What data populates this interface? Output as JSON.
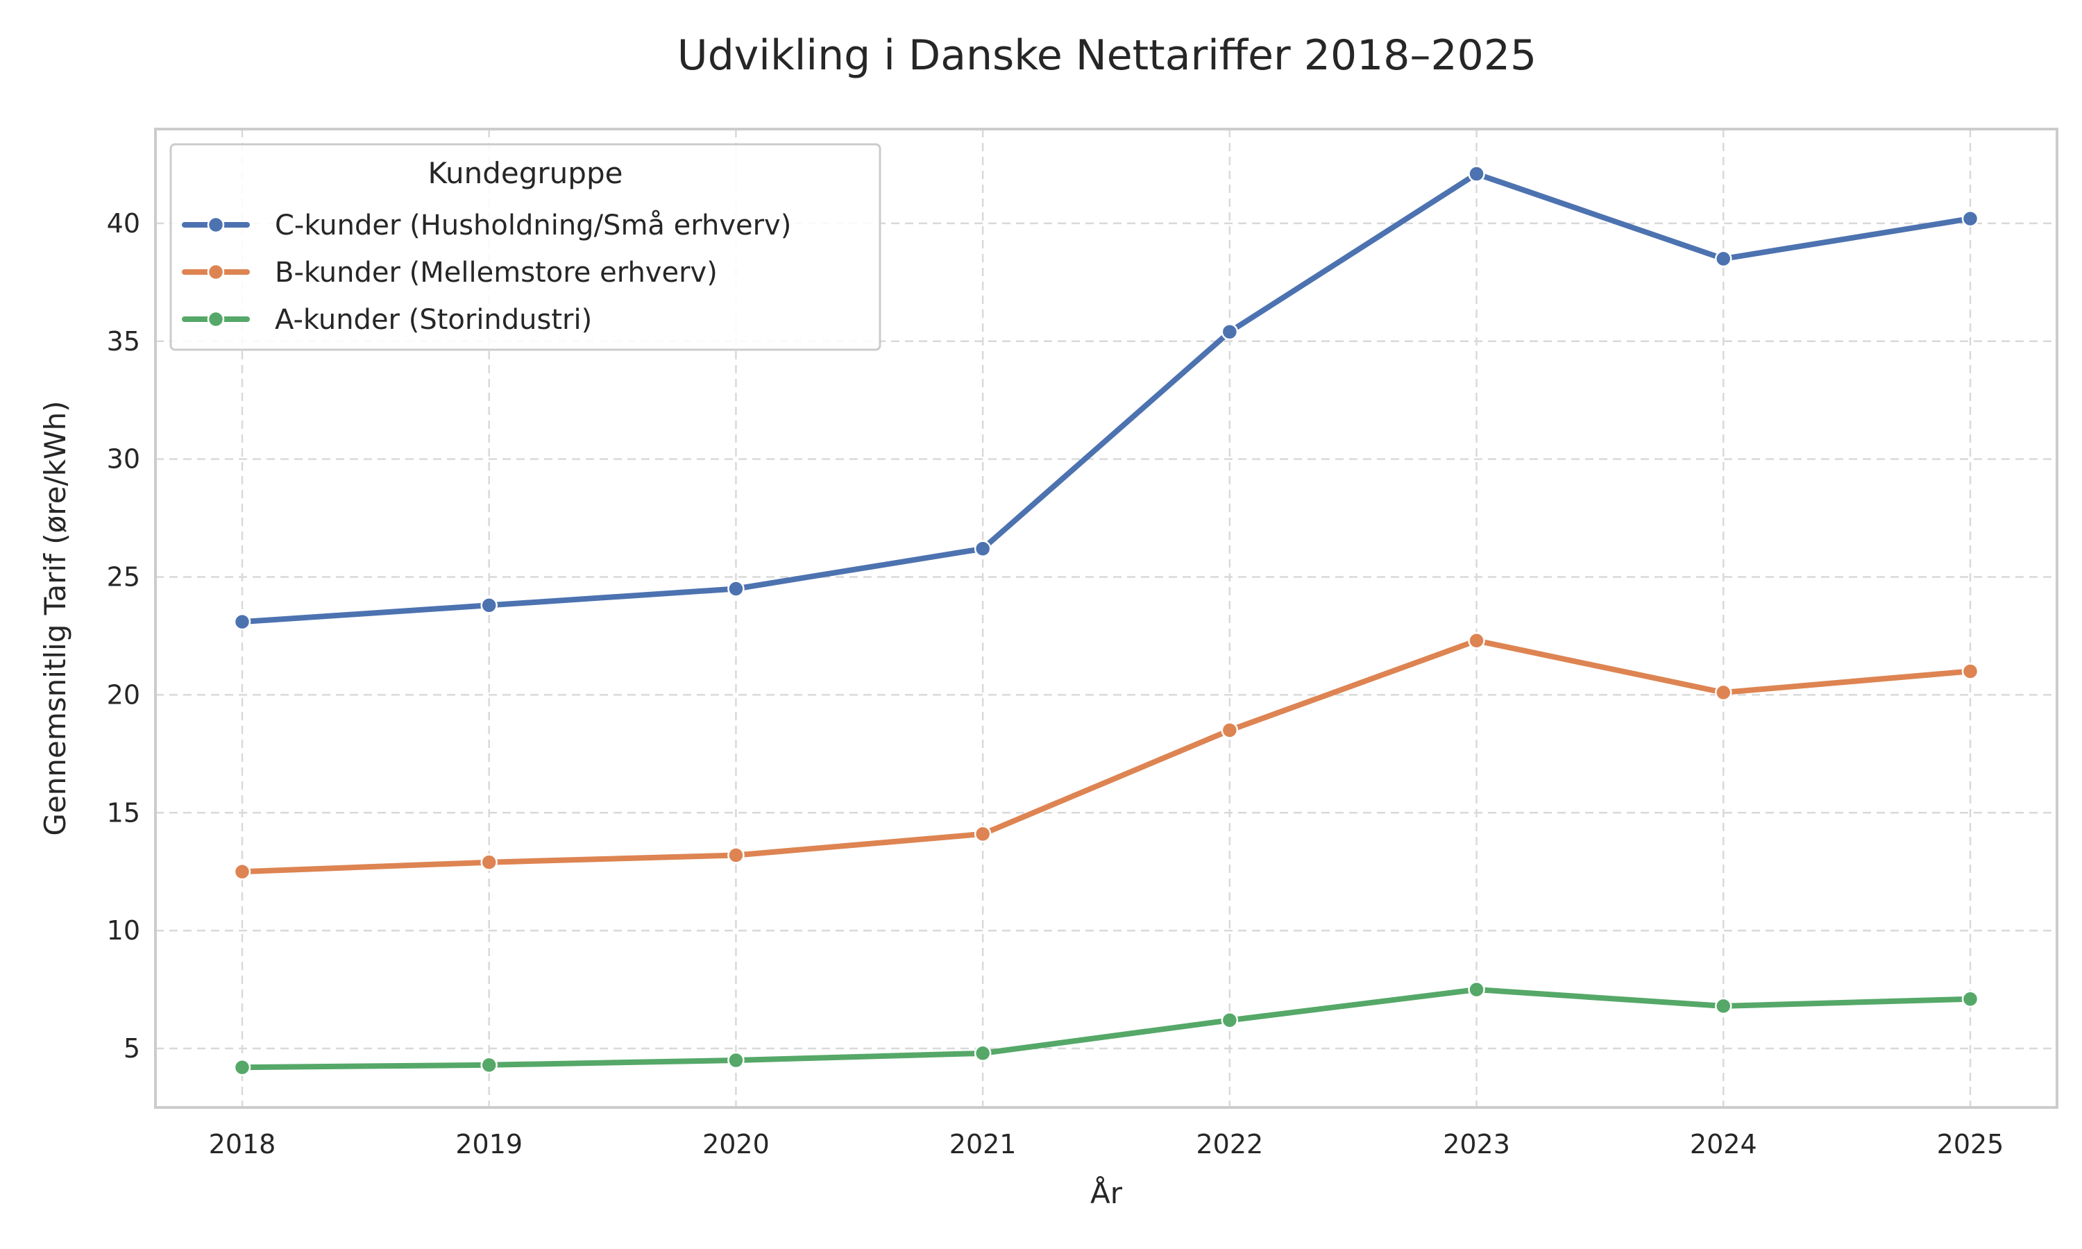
{
  "chart_data": {
    "type": "line",
    "title": "Udvikling i Danske Nettariffer 2018–2025",
    "xlabel": "År",
    "ylabel": "Gennemsnitlig Tarif (øre/kWh)",
    "x": [
      "2018",
      "2019",
      "2020",
      "2021",
      "2022",
      "2023",
      "2024",
      "2025"
    ],
    "yticks": [
      "5",
      "10",
      "15",
      "20",
      "25",
      "30",
      "35",
      "40"
    ],
    "ylim": [
      2.5,
      44.0
    ],
    "grid": true,
    "legend": {
      "title": "Kundegruppe",
      "placement": "top-left"
    },
    "series": [
      {
        "name": "C-kunder (Husholdning/Små erhverv)",
        "color": "#4c72b0",
        "values": [
          23.1,
          23.8,
          24.5,
          26.2,
          35.4,
          42.1,
          38.5,
          40.2
        ]
      },
      {
        "name": "B-kunder (Mellemstore erhverv)",
        "color": "#dd8452",
        "values": [
          12.5,
          12.9,
          13.2,
          14.1,
          18.5,
          22.3,
          20.1,
          21.0
        ]
      },
      {
        "name": "A-kunder (Storindustri)",
        "color": "#55a868",
        "values": [
          4.2,
          4.3,
          4.5,
          4.8,
          6.2,
          7.5,
          6.8,
          7.1
        ]
      }
    ]
  }
}
